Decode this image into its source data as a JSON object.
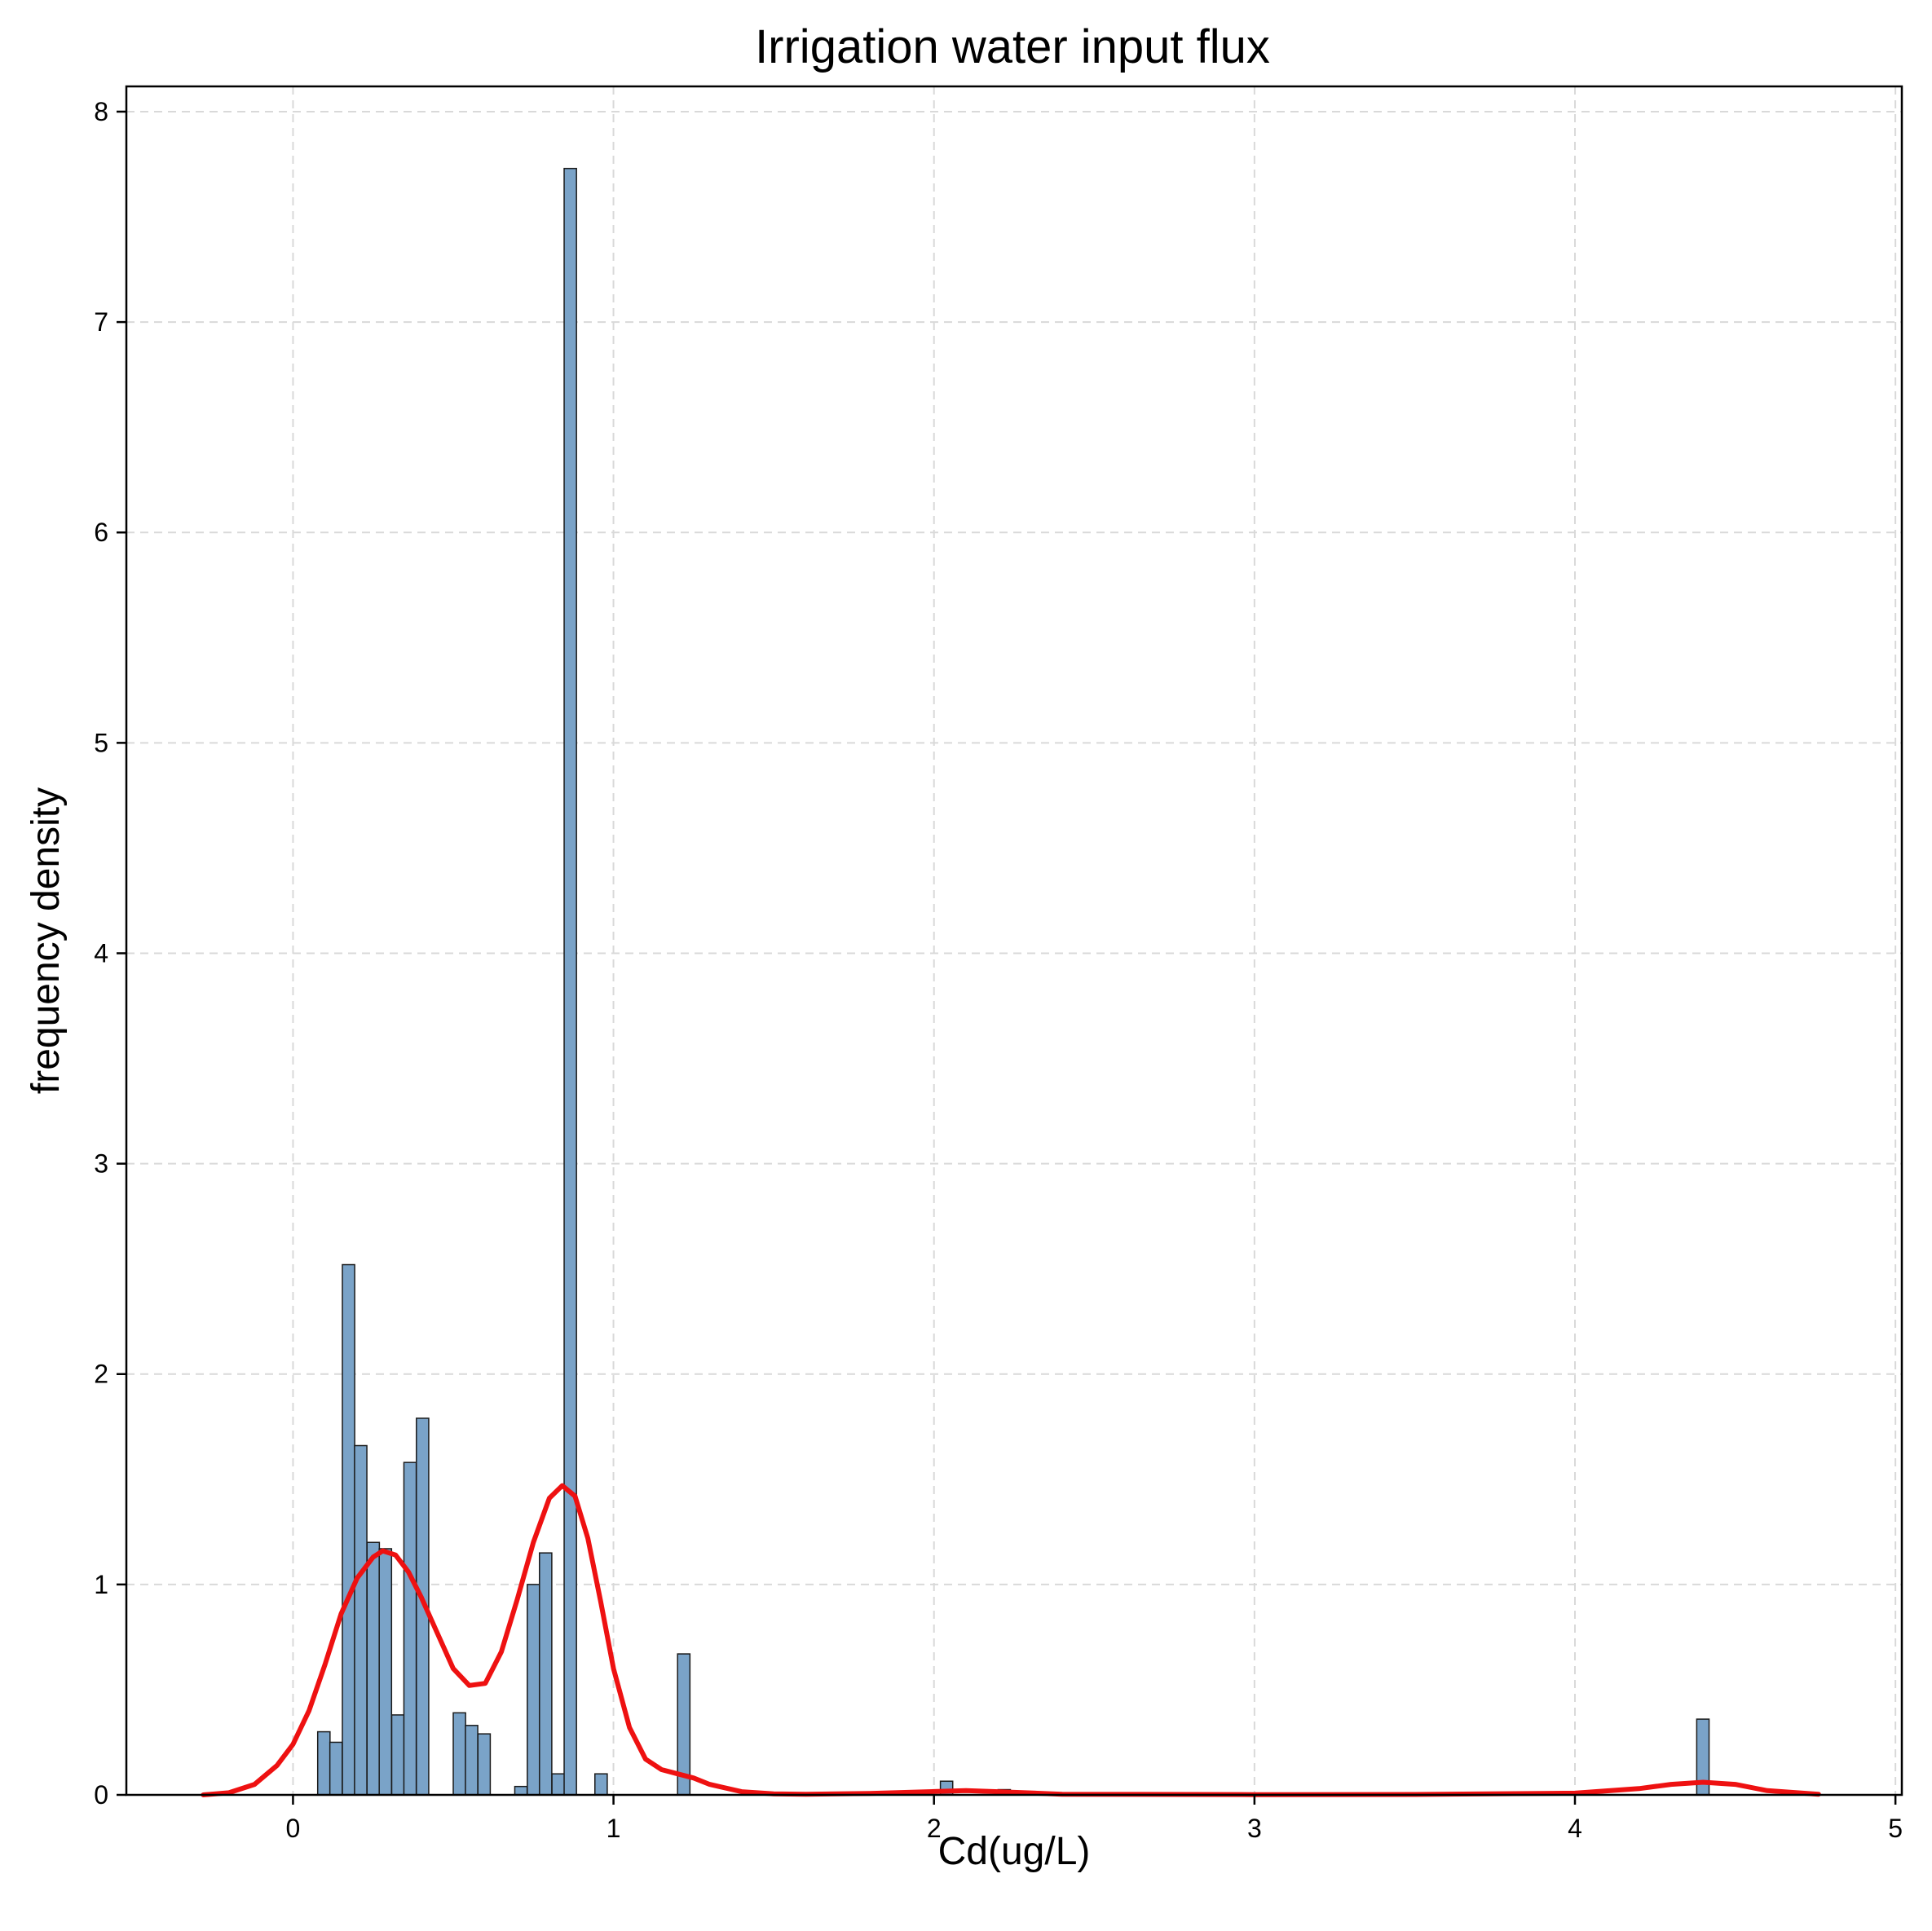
{
  "chart_data": {
    "type": "histogram",
    "title": "Irrigation water input flux",
    "xlabel": "Cd(ug/L)",
    "ylabel": "frequency density",
    "xlim": [
      -0.52,
      5.02
    ],
    "ylim": [
      0,
      8.12
    ],
    "xticks": [
      0,
      1,
      2,
      3,
      4,
      5
    ],
    "yticks": [
      0,
      1,
      2,
      3,
      4,
      5,
      6,
      7,
      8
    ],
    "grid": true,
    "bin_width": 0.0385,
    "bars": [
      {
        "x": 0.077,
        "y": 0.3
      },
      {
        "x": 0.115,
        "y": 0.25
      },
      {
        "x": 0.154,
        "y": 2.52
      },
      {
        "x": 0.192,
        "y": 1.66
      },
      {
        "x": 0.231,
        "y": 1.2
      },
      {
        "x": 0.269,
        "y": 1.17
      },
      {
        "x": 0.308,
        "y": 0.38
      },
      {
        "x": 0.346,
        "y": 1.58
      },
      {
        "x": 0.385,
        "y": 1.79
      },
      {
        "x": 0.5,
        "y": 0.39
      },
      {
        "x": 0.538,
        "y": 0.33
      },
      {
        "x": 0.577,
        "y": 0.29
      },
      {
        "x": 0.692,
        "y": 0.04
      },
      {
        "x": 0.731,
        "y": 1.0
      },
      {
        "x": 0.769,
        "y": 1.15
      },
      {
        "x": 0.808,
        "y": 0.1
      },
      {
        "x": 0.846,
        "y": 7.73
      },
      {
        "x": 0.942,
        "y": 0.1
      },
      {
        "x": 1.2,
        "y": 0.67
      },
      {
        "x": 2.02,
        "y": 0.065
      },
      {
        "x": 2.2,
        "y": 0.025
      },
      {
        "x": 4.38,
        "y": 0.36
      }
    ],
    "kde": {
      "x": [
        -0.28,
        -0.2,
        -0.12,
        -0.05,
        0.0,
        0.05,
        0.1,
        0.15,
        0.2,
        0.25,
        0.28,
        0.32,
        0.36,
        0.4,
        0.45,
        0.5,
        0.55,
        0.6,
        0.65,
        0.7,
        0.75,
        0.8,
        0.84,
        0.88,
        0.92,
        0.96,
        1.0,
        1.05,
        1.1,
        1.15,
        1.2,
        1.25,
        1.3,
        1.4,
        1.5,
        1.6,
        1.8,
        2.0,
        2.1,
        2.2,
        2.4,
        3.0,
        3.5,
        4.0,
        4.2,
        4.3,
        4.4,
        4.5,
        4.6,
        4.76
      ],
      "y": [
        0.0,
        0.01,
        0.05,
        0.14,
        0.24,
        0.4,
        0.62,
        0.86,
        1.03,
        1.13,
        1.16,
        1.14,
        1.06,
        0.94,
        0.77,
        0.6,
        0.52,
        0.53,
        0.68,
        0.93,
        1.2,
        1.41,
        1.47,
        1.42,
        1.22,
        0.92,
        0.6,
        0.32,
        0.17,
        0.12,
        0.1,
        0.08,
        0.05,
        0.015,
        0.005,
        0.003,
        0.007,
        0.016,
        0.02,
        0.015,
        0.003,
        0.001,
        0.002,
        0.008,
        0.03,
        0.05,
        0.06,
        0.05,
        0.02,
        0.003
      ]
    },
    "bar_color": "#7aa3c8",
    "kde_color": "#ee1111"
  }
}
